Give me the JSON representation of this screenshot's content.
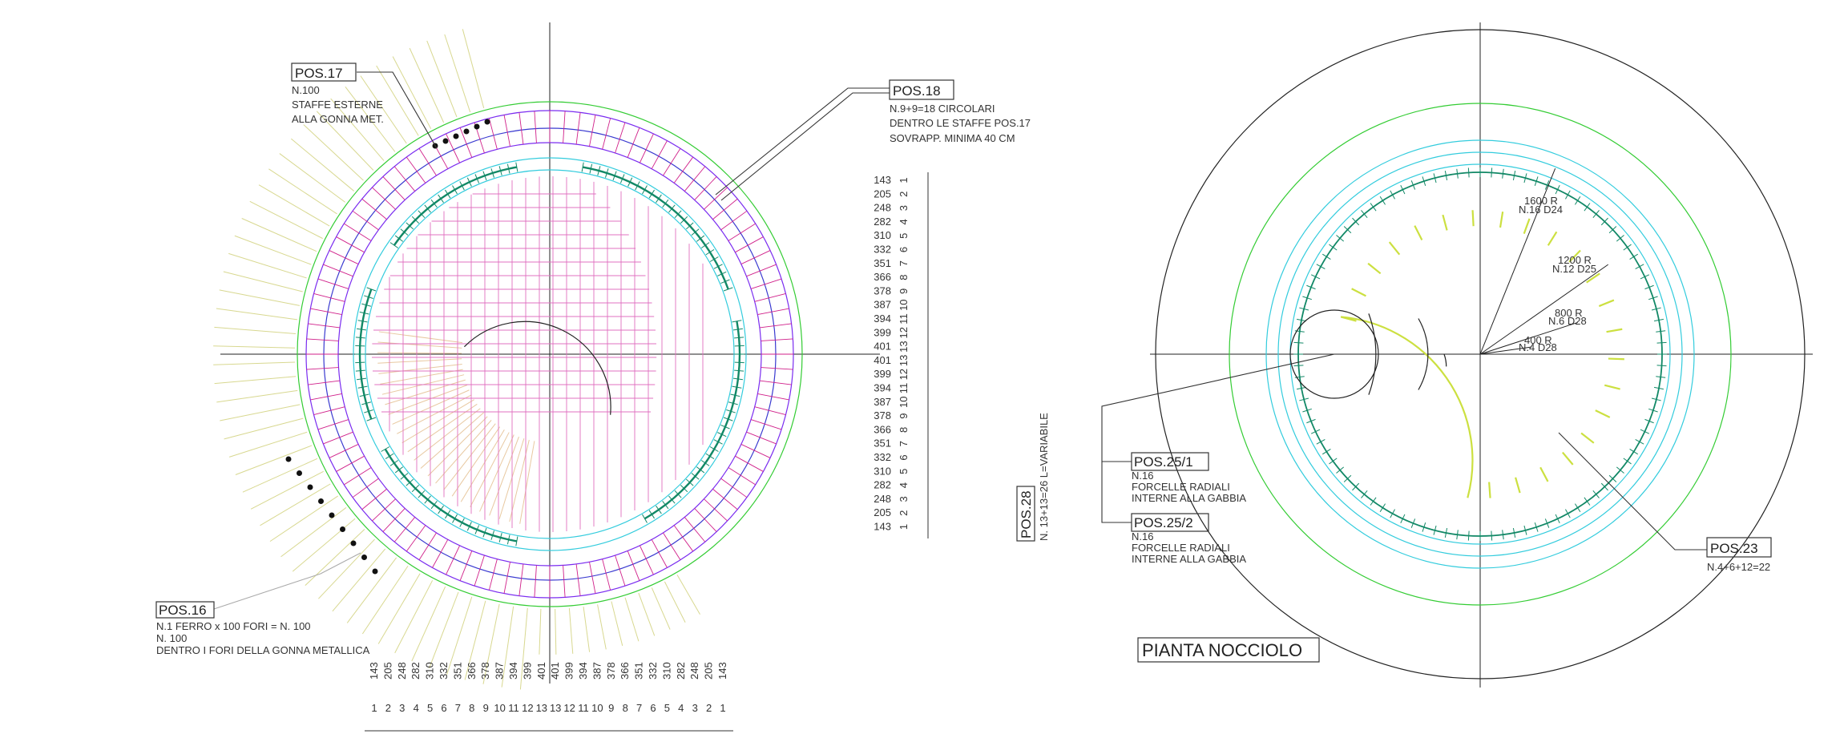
{
  "pos17": {
    "tag": "POS.17",
    "lines": [
      "N.100",
      "STAFFE ESTERNE",
      "ALLA GONNA MET."
    ]
  },
  "pos18": {
    "tag": "POS.18",
    "lines": [
      "N.9+9=18  CIRCOLARI",
      "DENTRO LE STAFFE POS.17",
      "SOVRAPP. MINIMA 40 CM"
    ]
  },
  "pos16": {
    "tag": "POS.16",
    "lines": [
      "N.1 FERRO x 100 FORI =  N. 100",
      "N. 100",
      "DENTRO I FORI DELLA GONNA METALLICA"
    ]
  },
  "pos28": {
    "tag": "POS.28",
    "note": "N. 13+13=26  L=VARIABILE"
  },
  "bar_schedule": [
    {
      "length": "143",
      "index": "1"
    },
    {
      "length": "205",
      "index": "2"
    },
    {
      "length": "248",
      "index": "3"
    },
    {
      "length": "282",
      "index": "4"
    },
    {
      "length": "310",
      "index": "5"
    },
    {
      "length": "332",
      "index": "6"
    },
    {
      "length": "351",
      "index": "7"
    },
    {
      "length": "366",
      "index": "8"
    },
    {
      "length": "378",
      "index": "9"
    },
    {
      "length": "387",
      "index": "10"
    },
    {
      "length": "394",
      "index": "11"
    },
    {
      "length": "399",
      "index": "12"
    },
    {
      "length": "401",
      "index": "13"
    },
    {
      "length": "401",
      "index": "13"
    },
    {
      "length": "399",
      "index": "12"
    },
    {
      "length": "394",
      "index": "11"
    },
    {
      "length": "387",
      "index": "10"
    },
    {
      "length": "378",
      "index": "9"
    },
    {
      "length": "366",
      "index": "8"
    },
    {
      "length": "351",
      "index": "7"
    },
    {
      "length": "332",
      "index": "6"
    },
    {
      "length": "310",
      "index": "5"
    },
    {
      "length": "282",
      "index": "4"
    },
    {
      "length": "248",
      "index": "3"
    },
    {
      "length": "205",
      "index": "2"
    },
    {
      "length": "143",
      "index": "1"
    }
  ],
  "pos25_1": {
    "tag": "POS.25/1",
    "lines": [
      "N.16",
      "FORCELLE RADIALI",
      "INTERNE ALLA GABBIA"
    ]
  },
  "pos25_2": {
    "tag": "POS.25/2",
    "lines": [
      "N.16",
      "FORCELLE RADIALI",
      "INTERNE ALLA GABBIA"
    ]
  },
  "pos23": {
    "tag": "POS.23",
    "note": "N.4+6+12=22"
  },
  "radii": [
    {
      "r": "1600 R",
      "bars": "N.16 D24"
    },
    {
      "r": "1200 R",
      "bars": "N.12 D25"
    },
    {
      "r": "800 R",
      "bars": "N.6 D28"
    },
    {
      "r": "400 R",
      "bars": "N.4 D28"
    }
  ],
  "plan_title": "PIANTA NOCCIOLO"
}
